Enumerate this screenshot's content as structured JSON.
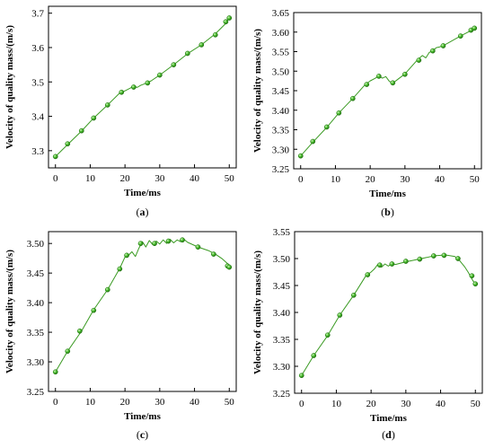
{
  "chart_data": [
    {
      "type": "line",
      "panel_label": "a",
      "xlabel": "Time/ms",
      "ylabel": "Velocity of quality mass/(m/s)",
      "xlim": [
        -2,
        52
      ],
      "ylim": [
        3.25,
        3.72
      ],
      "xticks": [
        0,
        10,
        20,
        30,
        40,
        50
      ],
      "yticks": [
        3.3,
        3.4,
        3.5,
        3.6,
        3.7
      ],
      "ytick_labels": [
        "3.3",
        "3.4",
        "3.5",
        "3.6",
        "3.7"
      ],
      "line": {
        "x": [
          0,
          3.5,
          7.5,
          11,
          15,
          18.5,
          19.5,
          20,
          21.5,
          22.5,
          23.5,
          24.5,
          26,
          27.5,
          30,
          34,
          38,
          42,
          46,
          49,
          50
        ],
        "y": [
          3.283,
          3.318,
          3.357,
          3.395,
          3.433,
          3.468,
          3.472,
          3.474,
          3.482,
          3.488,
          3.484,
          3.49,
          3.496,
          3.503,
          3.52,
          3.55,
          3.582,
          3.608,
          3.64,
          3.67,
          3.688
        ]
      },
      "markers": {
        "x": [
          0,
          3.5,
          7.5,
          11,
          15,
          19,
          22.5,
          26.5,
          30,
          34,
          38,
          42,
          46,
          49,
          50
        ],
        "y": [
          3.283,
          3.32,
          3.358,
          3.395,
          3.433,
          3.47,
          3.485,
          3.497,
          3.52,
          3.55,
          3.583,
          3.608,
          3.637,
          3.675,
          3.686
        ]
      },
      "color": "#3a9a22",
      "marker_color": "#46b82a"
    },
    {
      "type": "line",
      "panel_label": "b",
      "xlabel": "Time/ms",
      "ylabel": "Velocity of quality mass/(m/s)",
      "xlim": [
        -2,
        52
      ],
      "ylim": [
        3.25,
        3.65
      ],
      "xticks": [
        0,
        10,
        20,
        30,
        40,
        50
      ],
      "yticks": [
        3.25,
        3.3,
        3.35,
        3.4,
        3.45,
        3.5,
        3.55,
        3.6,
        3.65
      ],
      "ytick_labels": [
        "3.25",
        "3.30",
        "3.35",
        "3.40",
        "3.45",
        "3.50",
        "3.55",
        "3.60",
        "3.65"
      ],
      "line": {
        "x": [
          0,
          3.5,
          7.5,
          11,
          15,
          18.5,
          20,
          21.5,
          22.5,
          23.5,
          24.5,
          25.5,
          26.5,
          27.5,
          30,
          33.5,
          35,
          36,
          37,
          38,
          39,
          40,
          41,
          42,
          46,
          49,
          50
        ],
        "y": [
          3.283,
          3.318,
          3.356,
          3.393,
          3.43,
          3.465,
          3.475,
          3.482,
          3.488,
          3.482,
          3.486,
          3.474,
          3.469,
          3.476,
          3.493,
          3.528,
          3.54,
          3.534,
          3.548,
          3.552,
          3.56,
          3.562,
          3.566,
          3.57,
          3.59,
          3.604,
          3.61
        ]
      },
      "markers": {
        "x": [
          0,
          3.5,
          7.5,
          11,
          15,
          19,
          22.5,
          26.5,
          30,
          34,
          38,
          41,
          46,
          49,
          50
        ],
        "y": [
          3.283,
          3.32,
          3.357,
          3.393,
          3.43,
          3.466,
          3.487,
          3.47,
          3.492,
          3.528,
          3.552,
          3.565,
          3.59,
          3.605,
          3.61
        ]
      },
      "color": "#3a9a22",
      "marker_color": "#46b82a"
    },
    {
      "type": "line",
      "panel_label": "c",
      "xlabel": "Time/ms",
      "ylabel": "Velocity of quality mass/(m/s)",
      "xlim": [
        -2,
        52
      ],
      "ylim": [
        3.25,
        3.52
      ],
      "xticks": [
        0,
        10,
        20,
        30,
        40,
        50
      ],
      "yticks": [
        3.25,
        3.3,
        3.35,
        3.4,
        3.45,
        3.5
      ],
      "ytick_labels": [
        "3.25",
        "3.30",
        "3.35",
        "3.40",
        "3.45",
        "3.50"
      ],
      "line": {
        "x": [
          0,
          3.5,
          7.5,
          11,
          15,
          18.5,
          20,
          21,
          22,
          23,
          24,
          25,
          26,
          27,
          28,
          29,
          30,
          31,
          32,
          33,
          34,
          35,
          36,
          37,
          38,
          41,
          44,
          46,
          48,
          49.5,
          50
        ],
        "y": [
          3.283,
          3.318,
          3.352,
          3.388,
          3.422,
          3.458,
          3.477,
          3.48,
          3.486,
          3.478,
          3.492,
          3.503,
          3.494,
          3.505,
          3.498,
          3.504,
          3.499,
          3.506,
          3.5,
          3.507,
          3.501,
          3.506,
          3.503,
          3.507,
          3.502,
          3.494,
          3.488,
          3.482,
          3.474,
          3.466,
          3.46
        ]
      },
      "markers": {
        "x": [
          0,
          3.5,
          7,
          11,
          15,
          18.5,
          20.5,
          24.5,
          28.5,
          32.5,
          36.5,
          41,
          45.5,
          49.5,
          50
        ],
        "y": [
          3.283,
          3.318,
          3.352,
          3.387,
          3.422,
          3.457,
          3.48,
          3.5,
          3.5,
          3.504,
          3.506,
          3.494,
          3.482,
          3.462,
          3.46
        ]
      },
      "color": "#3a9a22",
      "marker_color": "#46b82a"
    },
    {
      "type": "line",
      "panel_label": "d",
      "xlabel": "Time/ms",
      "ylabel": "Velocity of quality mass/(m/s)",
      "xlim": [
        -2,
        52
      ],
      "ylim": [
        3.25,
        3.55
      ],
      "xticks": [
        0,
        10,
        20,
        30,
        40,
        50
      ],
      "yticks": [
        3.25,
        3.3,
        3.35,
        3.4,
        3.45,
        3.5,
        3.55
      ],
      "ytick_labels": [
        "3.25",
        "3.30",
        "3.35",
        "3.40",
        "3.45",
        "3.50",
        "3.55"
      ],
      "line": {
        "x": [
          0,
          3.5,
          7.5,
          11,
          15,
          18.5,
          20,
          21,
          22,
          23,
          24,
          25,
          26,
          27,
          30,
          33,
          36,
          38,
          40,
          41,
          42,
          44,
          45,
          46,
          47,
          48,
          49,
          50
        ],
        "y": [
          3.283,
          3.32,
          3.357,
          3.395,
          3.432,
          3.468,
          3.475,
          3.481,
          3.49,
          3.484,
          3.49,
          3.486,
          3.491,
          3.489,
          3.494,
          3.498,
          3.502,
          3.505,
          3.506,
          3.507,
          3.506,
          3.504,
          3.5,
          3.492,
          3.484,
          3.474,
          3.462,
          3.452
        ]
      },
      "markers": {
        "x": [
          0,
          3.5,
          7.5,
          11,
          15,
          19,
          22.5,
          26,
          30,
          34,
          38,
          41,
          45,
          49,
          50
        ],
        "y": [
          3.283,
          3.32,
          3.358,
          3.395,
          3.432,
          3.47,
          3.488,
          3.49,
          3.495,
          3.499,
          3.505,
          3.506,
          3.5,
          3.468,
          3.453
        ]
      },
      "color": "#3a9a22",
      "marker_color": "#46b82a"
    }
  ]
}
